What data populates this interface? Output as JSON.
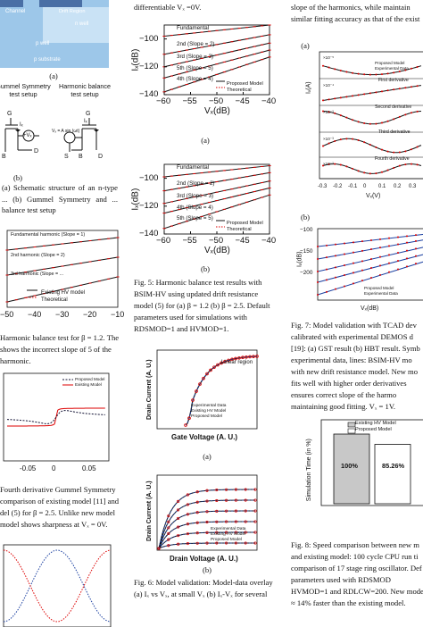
{
  "col_left": {
    "fig1": {
      "labels": {
        "channel": "Channel",
        "drift": "Drift Region",
        "nwell": "n well",
        "pwell": "p well",
        "psub": "p substrate",
        "sub_a": "(a)",
        "gummel_title": "Gummel Symmetry test setup",
        "hb_title": "Harmonic balance test setup",
        "G1": "G",
        "G2": "G",
        "B1": "B",
        "D1": "D",
        "S2": "S",
        "B2": "B",
        "D2": "D",
        "ix": "Iₓ",
        "vx": "+Vₓ",
        "ix2": "Iₓ",
        "vs_text": "Vₓ = A sin (ωt)",
        "sub_b": "(b)"
      },
      "caption": "(a) Schematic structure of an n-type ... (b) Gummel Symmetry and ... balance test setup"
    },
    "fig2": {
      "caption_lines": [
        "Harmonic balance test for β = 1.2. The",
        "shows the incorrect slope of 5 of the",
        "harmonic."
      ]
    },
    "fig3": {
      "caption_lines": [
        "Fourth derivative Gummel Symmetry",
        "comparison of existing model [11] and",
        "del (5) for β = 2.5. Unlike new model",
        "model shows sharpness at Vₓ = 0V."
      ]
    }
  },
  "col_mid": {
    "top_line": "differentiable Vₓ =0V.",
    "fig5": {
      "sub_a": "(a)",
      "sub_b": "(b)",
      "caption_lines": [
        "Fig. 5: Harmonic balance test results with",
        "BSIM-HV using updated drift resistance",
        "model (5) for (a) β = 1.2 (b) β = 2.5. Default",
        "parameters used for simulations with",
        "RDSMOD=1 and HVMOD=1."
      ]
    },
    "fig6": {
      "sub_a": "(a)",
      "sub_b": "(b)",
      "caption_lines": [
        "Fig. 6: Model validation: Model-data overlay",
        "(a) Iₓ vs Vₓ, at small Vₓ (b) Iₓ-Vₓ for several"
      ]
    }
  },
  "col_right": {
    "top_lines": [
      "slope of the harmonics, while maintain",
      "similar fitting accuracy as that of the exist"
    ],
    "fig7": {
      "sub_a": "(a)",
      "sub_b": "(b)",
      "caption_lines": [
        "Fig. 7: Model validation with TCAD dev",
        "calibrated with experimental DEMOS d",
        "[19]: (a) GST result (b) HBT result. Symb",
        "experimental data, lines: BSIM-HV mo",
        "with new drift resistance model. New mo",
        "fits well with higher order derivatives",
        "ensures correct slope of the harmo",
        "maintaining good fitting. Vₓ = 1V."
      ]
    },
    "fig8": {
      "caption_lines": [
        "Fig. 8: Speed comparison between new m",
        "and existing model: 100 cycle CPU run ti",
        "comparison of 17 stage ring oscillator. Def",
        "parameters used with RDSMOD",
        "HVMOD=1 and RDLCW=200. New model",
        "≈ 14% faster than the existing model."
      ]
    }
  },
  "charts": {
    "hb_left": {
      "ytick_labels": [
        "−100",
        "−80",
        "−60"
      ],
      "xticks": [
        -50,
        -40,
        -30,
        -20,
        -10
      ],
      "xlim": [
        -50,
        -10
      ],
      "legend": [
        "Existing HV model",
        "Theoretical"
      ],
      "annotations": [
        "Fundamental harmonic (Slope = 1)",
        "2nd harmonic (Slope = 2)",
        "3rd harmonic (Slope = ..."
      ]
    },
    "gst_left": {
      "xticks": [
        -0.05,
        0,
        0.05
      ],
      "legend": [
        "Proposed Model",
        "Existing Model"
      ]
    },
    "hb_mid_a": {
      "type": "line",
      "ylabel": "Iₓ(dB)",
      "xlabel": "Vₓ(dB)",
      "xlim": [
        -60,
        -40
      ],
      "ylim": [
        -140,
        -90
      ],
      "xticks": [
        -60,
        -55,
        -50,
        -45,
        -40
      ],
      "yticks": [
        -140,
        -120,
        -100
      ],
      "legend": [
        "Proposed Model",
        "Theoretical"
      ],
      "series": [
        {
          "name": "Fundamental",
          "x": [
            -60,
            -40
          ],
          "y": [
            -98,
            -90
          ]
        },
        {
          "name": "2nd (Slope = 2)",
          "x": [
            -60,
            -40
          ],
          "y": [
            -111,
            -97
          ]
        },
        {
          "name": "3rd (Slope = 3)",
          "x": [
            -60,
            -40
          ],
          "y": [
            -120,
            -103
          ]
        },
        {
          "name": "5th (Slope = 5)",
          "x": [
            -60,
            -40
          ],
          "y": [
            -128,
            -108
          ]
        },
        {
          "name": "4th (Slope = 4)",
          "x": [
            -60,
            -40
          ],
          "y": [
            -138,
            -113
          ]
        }
      ],
      "annotations": [
        "Fundamental",
        "2nd (Slope = 2)",
        "3rd (Slope = 3)",
        "5th (Slope = 5)",
        "4th (Slope = 4)"
      ]
    },
    "hb_mid_b": {
      "type": "line",
      "ylabel": "Iₓ(dB)",
      "xlabel": "Vₓ(dB)",
      "xlim": [
        -60,
        -40
      ],
      "ylim": [
        -140,
        -90
      ],
      "xticks": [
        -60,
        -55,
        -50,
        -45,
        -40
      ],
      "yticks": [
        -140,
        -120,
        -100
      ],
      "legend": [
        "Proposed Model",
        "Theoretical"
      ],
      "series": [
        {
          "name": "Fundamental",
          "x": [
            -60,
            -40
          ],
          "y": [
            -99,
            -91
          ]
        },
        {
          "name": "2nd (Slope = 2)",
          "x": [
            -60,
            -40
          ],
          "y": [
            -109,
            -96
          ]
        },
        {
          "name": "3rd (Slope = 3)",
          "x": [
            -60,
            -40
          ],
          "y": [
            -118,
            -102
          ]
        },
        {
          "name": "4th (Slope = 4)",
          "x": [
            -60,
            -40
          ],
          "y": [
            -125,
            -107
          ]
        },
        {
          "name": "5th (Slope = 5)",
          "x": [
            -60,
            -40
          ],
          "y": [
            -136,
            -112
          ]
        }
      ],
      "annotations": [
        "Fundamental",
        "2nd (Slope = 2)",
        "3rd (Slope = 3)",
        "4th (Slope = 4)",
        "5th (Slope = 5)"
      ]
    },
    "id_vg": {
      "type": "line",
      "ylabel": "Drain Current (A. U.)",
      "xlabel": "Gate Voltage (A. U.)",
      "legend": [
        "Experimental Data",
        "Existing HV Model",
        "Proposed Model"
      ],
      "annotations": [
        "Linear region"
      ]
    },
    "id_vd": {
      "type": "line",
      "ylabel": "Drain Current (A. U.)",
      "xlabel": "Drain Voltage (A. U.)",
      "legend": [
        "Experimental Data",
        "Existing HV Model",
        "Proposed Model"
      ]
    },
    "gst_right": {
      "ylabel": "Iₓ(A)",
      "xlabel": "Vₓ(V)",
      "xticks": [
        -0.3,
        -0.2,
        -0.1,
        0,
        0.1,
        0.2,
        0.3
      ],
      "legend": [
        "Proposed Model",
        "Experimental Data"
      ],
      "annotations": [
        "First derivative",
        "Second derivative",
        "Third derivative",
        "Fourth derivative"
      ],
      "scale_labels": [
        "×10⁻⁵",
        "×10⁻⁴",
        "×10⁻³",
        "×10⁻³",
        "×10⁻³"
      ]
    },
    "hb_right": {
      "ylabel": "Iₓ(dB)",
      "xlabel": "Vₓ(dB)",
      "yticks": [
        -200,
        -150,
        -100
      ],
      "legend": [
        "Proposed Model",
        "Experimental Data"
      ]
    },
    "speed": {
      "type": "bar",
      "ylabel": "Simulation Time (in %)",
      "legend": [
        "Existing HV Model",
        "Proposed Model"
      ],
      "categories": [
        "Existing HV Model",
        "Proposed Model"
      ],
      "values": [
        100,
        85.26
      ],
      "value_labels": [
        "100%",
        "85.26%"
      ],
      "ylim": [
        0,
        100
      ],
      "colors": [
        "#c8c8c8",
        "#ffffff"
      ]
    }
  }
}
